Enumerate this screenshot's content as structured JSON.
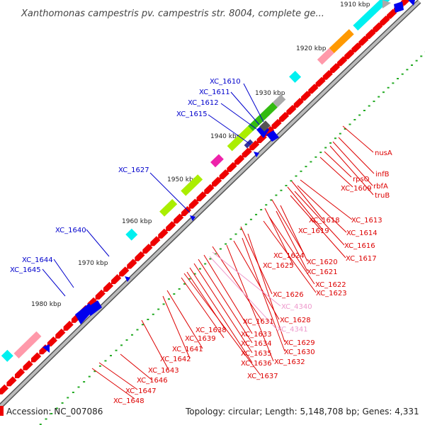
{
  "title": "Xanthomonas campestris pv. campestris str. 8004, complete ge...",
  "footer": {
    "accession": "Accession: NC_007086",
    "summary": "Topology: circular; Length: 5,148,708 bp; Genes: 4,331"
  },
  "ticks": [
    "1910 kbp",
    "1920 kbp",
    "1930 kbp",
    "1940 kbp",
    "1950 kbp",
    "1960 kbp",
    "1970 kbp",
    "1980 kbp"
  ],
  "colors": {
    "backbone": "#8a8a8a",
    "forward_cds": "#0000ee",
    "reverse_cds": "#ee0000",
    "forward_label": "#0000cc",
    "reverse_label": "#dd0000",
    "rna_label": "#ee99cc",
    "cog_cyan": "#00f0f0",
    "cog_lightgreen": "#aaee00",
    "cog_green": "#33bb11",
    "cog_pink": "#ff99aa",
    "cog_magenta": "#ee22aa",
    "cog_orange": "#ff9900",
    "cog_gray": "#aaaaaa",
    "gc_skew_dot": "#22aa22"
  },
  "labels": {
    "forward": [
      "XC_1610",
      "XC_1611",
      "XC_1612",
      "XC_1615",
      "XC_1627",
      "XC_1640",
      "XC_1644",
      "XC_1645"
    ],
    "reverse": [
      "nusA",
      "infB",
      "rpsO",
      "rbfA",
      "XC_1609",
      "truB",
      "XC_1613",
      "XC_1618",
      "XC_1614",
      "XC_1619",
      "XC_1616",
      "XC_1617",
      "XC_1624",
      "XC_1620",
      "XC_1625",
      "XC_1621",
      "XC_1622",
      "XC_1623",
      "XC_1626",
      "XC_1628",
      "XC_1631",
      "XC_1629",
      "XC_1633",
      "XC_1630",
      "XC_1638",
      "XC_1634",
      "XC_1639",
      "XC_1635",
      "XC_1632",
      "XC_1636",
      "XC_1641",
      "XC_1637",
      "XC_1642",
      "XC_1643",
      "XC_1646",
      "XC_1647",
      "XC_1648"
    ],
    "rna": [
      "XC_4340",
      "XC_4341"
    ]
  }
}
